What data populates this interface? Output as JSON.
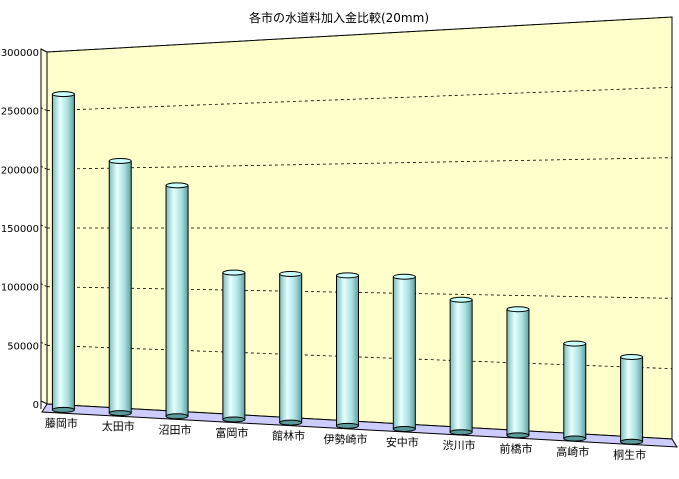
{
  "chart_data": {
    "type": "bar",
    "style": "3d-cylinder",
    "title": "各市の水道料加入金比較(20mm)",
    "categories": [
      "藤岡市",
      "太田市",
      "沼田市",
      "富岡市",
      "館林市",
      "伊勢崎市",
      "安中市",
      "渋川市",
      "前橋市",
      "高崎市",
      "桐生市"
    ],
    "values": [
      267750,
      210000,
      189000,
      118125,
      117600,
      117000,
      116550,
      99750,
      93450,
      69300,
      60900
    ],
    "xlabel": "",
    "ylabel": "",
    "ylim": [
      0,
      300000
    ],
    "yticks": [
      0,
      50000,
      100000,
      150000,
      200000,
      250000,
      300000
    ],
    "ytick_labels": [
      "0",
      "50000",
      "100000",
      "150000",
      "200000",
      "250000",
      "300000"
    ],
    "grid": true,
    "grid_style": "dashed",
    "legend": "none",
    "colors": {
      "wall": "#ffffcc",
      "floor": "#ccccff",
      "bar_light": "#e6ffff",
      "bar_mid": "#9fd9d9",
      "bar_dark": "#5a9a9a",
      "bar_top": "#ccffff"
    }
  }
}
